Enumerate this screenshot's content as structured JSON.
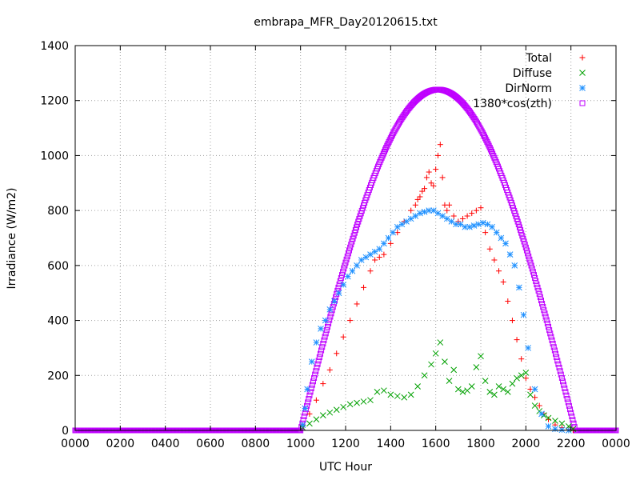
{
  "chart_data": {
    "type": "scatter",
    "title": "embrapa_MFR_Day20120615.txt",
    "xlabel": "UTC Hour",
    "ylabel": "Irradiance (W/m2)",
    "xlim": [
      0,
      24
    ],
    "ylim": [
      0,
      1400
    ],
    "x_ticks": [
      0,
      2,
      4,
      6,
      8,
      10,
      12,
      14,
      16,
      18,
      20,
      22,
      24
    ],
    "x_tick_labels": [
      "0000",
      "0200",
      "0400",
      "0600",
      "0800",
      "1000",
      "1200",
      "1400",
      "1600",
      "1800",
      "2000",
      "2200",
      "0000"
    ],
    "y_ticks": [
      0,
      200,
      400,
      600,
      800,
      1000,
      1200,
      1400
    ],
    "y_tick_labels": [
      "0",
      "200",
      "400",
      "600",
      "800",
      "1000",
      "1200",
      "1400"
    ],
    "grid": true,
    "legend_position": "top-right",
    "series": [
      {
        "name": "Total",
        "marker": "plus",
        "color": "#ff0000",
        "x": [
          10.1,
          10.4,
          10.7,
          11.0,
          11.3,
          11.6,
          11.9,
          12.2,
          12.5,
          12.8,
          13.1,
          13.3,
          13.5,
          13.7,
          14.0,
          14.3,
          14.6,
          14.9,
          15.1,
          15.2,
          15.3,
          15.4,
          15.5,
          15.6,
          15.7,
          15.8,
          15.9,
          16.0,
          16.1,
          16.2,
          16.3,
          16.4,
          16.5,
          16.6,
          16.8,
          17.0,
          17.2,
          17.4,
          17.6,
          17.8,
          18.0,
          18.2,
          18.4,
          18.6,
          18.8,
          19.0,
          19.2,
          19.4,
          19.6,
          19.8,
          20.0,
          20.2,
          20.4,
          20.6,
          20.8,
          21.0,
          21.3,
          21.6,
          21.9,
          22.1
        ],
        "y": [
          20,
          60,
          110,
          170,
          220,
          280,
          340,
          400,
          460,
          520,
          580,
          620,
          630,
          640,
          680,
          720,
          760,
          800,
          820,
          840,
          850,
          870,
          880,
          920,
          940,
          900,
          890,
          950,
          1000,
          1040,
          920,
          820,
          800,
          820,
          780,
          760,
          770,
          780,
          790,
          800,
          810,
          720,
          660,
          620,
          580,
          540,
          470,
          400,
          330,
          260,
          190,
          150,
          120,
          90,
          60,
          40,
          20,
          10,
          4,
          1
        ]
      },
      {
        "name": "Diffuse",
        "marker": "cross",
        "color": "#00a000",
        "x": [
          10.1,
          10.4,
          10.7,
          11.0,
          11.3,
          11.6,
          11.9,
          12.2,
          12.5,
          12.8,
          13.1,
          13.4,
          13.7,
          14.0,
          14.3,
          14.6,
          14.9,
          15.2,
          15.5,
          15.8,
          16.0,
          16.2,
          16.4,
          16.6,
          16.8,
          17.0,
          17.2,
          17.4,
          17.6,
          17.8,
          18.0,
          18.2,
          18.4,
          18.6,
          18.8,
          19.0,
          19.2,
          19.4,
          19.6,
          19.8,
          20.0,
          20.2,
          20.4,
          20.6,
          20.8,
          21.0,
          21.3,
          21.6,
          21.9,
          22.1
        ],
        "y": [
          10,
          25,
          40,
          55,
          65,
          75,
          85,
          95,
          100,
          105,
          110,
          140,
          145,
          130,
          125,
          120,
          130,
          160,
          200,
          240,
          280,
          320,
          250,
          180,
          220,
          150,
          140,
          145,
          160,
          230,
          270,
          180,
          140,
          130,
          160,
          150,
          140,
          170,
          190,
          200,
          210,
          130,
          90,
          70,
          55,
          45,
          35,
          25,
          15,
          5
        ]
      },
      {
        "name": "DirNorm",
        "marker": "star",
        "color": "#1e90ff",
        "x": [
          10.1,
          10.2,
          10.3,
          10.5,
          10.7,
          10.9,
          11.1,
          11.3,
          11.5,
          11.7,
          11.9,
          12.1,
          12.3,
          12.5,
          12.7,
          12.9,
          13.1,
          13.3,
          13.5,
          13.7,
          13.9,
          14.1,
          14.3,
          14.5,
          14.7,
          14.9,
          15.1,
          15.3,
          15.5,
          15.7,
          15.9,
          16.1,
          16.3,
          16.5,
          16.7,
          16.9,
          17.1,
          17.3,
          17.5,
          17.7,
          17.9,
          18.1,
          18.3,
          18.5,
          18.7,
          18.9,
          19.1,
          19.3,
          19.5,
          19.7,
          19.9,
          20.1,
          20.4,
          20.7,
          21.0,
          21.3,
          21.6,
          21.9
        ],
        "y": [
          20,
          80,
          150,
          250,
          320,
          370,
          400,
          440,
          470,
          500,
          530,
          560,
          580,
          600,
          620,
          630,
          640,
          650,
          660,
          680,
          700,
          720,
          740,
          750,
          760,
          770,
          780,
          790,
          795,
          800,
          800,
          790,
          780,
          770,
          760,
          750,
          750,
          740,
          740,
          745,
          750,
          755,
          750,
          740,
          720,
          700,
          680,
          640,
          600,
          520,
          420,
          300,
          150,
          60,
          15,
          5,
          2,
          0
        ]
      },
      {
        "name": "1380*cos(zth)",
        "marker": "square",
        "color": "#bf00ff",
        "peak": 1240,
        "peak_x": 16.1,
        "rise_x": 10.0,
        "set_x": 22.2
      }
    ]
  }
}
